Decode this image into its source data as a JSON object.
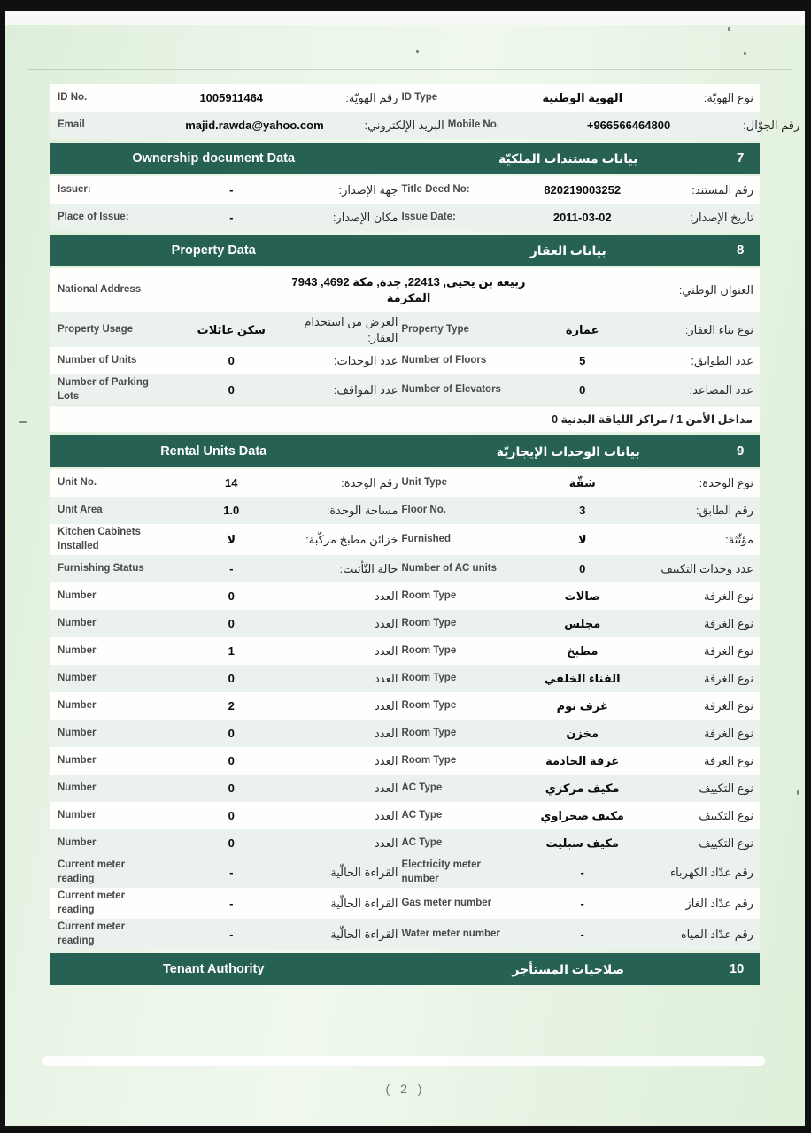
{
  "colors": {
    "header_green": "#266154",
    "row_light": "#ebf1ed",
    "paper_green": "#dcefd9"
  },
  "page": {
    "number_label": "( 2 )"
  },
  "table": {
    "rows": [
      {
        "type": "pair",
        "shade": "white",
        "en_l": "ID No.",
        "val_l": "1005911464",
        "ar_l": "رقم الهويّة:",
        "en_r": "ID Type",
        "val_r": "الهوية الوطنية",
        "ar_r": "نوع الهويّة:"
      },
      {
        "type": "pair",
        "shade": "light",
        "en_l": "Email",
        "val_l": "majid.rawda@yahoo.com",
        "ar_l": "البريد الإلكتروني:",
        "en_r": "Mobile No.",
        "val_r": "+966566464800",
        "ar_r": "رقم الجوّال:"
      },
      {
        "type": "section",
        "num": "7",
        "ar": "بيانات مستندات الملكيّة",
        "en": "Ownership document Data"
      },
      {
        "type": "pair",
        "shade": "white",
        "en_l": "Issuer:",
        "val_l": "-",
        "ar_l": "جهة الإصدار:",
        "en_r": "Title Deed No:",
        "val_r": "820219003252",
        "ar_r": "رقم المستند:"
      },
      {
        "type": "pair",
        "shade": "light",
        "en_l": "Place of Issue:",
        "val_l": "-",
        "ar_l": "مكان الإصدار:",
        "en_r": "Issue Date:",
        "val_r": "2011-03-02",
        "ar_r": "تاريخ الإصدار:"
      },
      {
        "type": "section",
        "num": "8",
        "ar": "بيانات العقار",
        "en": "Property Data"
      },
      {
        "type": "address",
        "shade": "white",
        "en_l": "National Address",
        "val_l1": "ربيعه بن يحيى, 22413, جدة, مكة 4692, 7943",
        "val_l2": "المكرمة",
        "ar_r": "العنوان الوطني:"
      },
      {
        "type": "pair",
        "shade": "light",
        "en_l": "Property Usage",
        "val_l": "سكن عائلات",
        "ar_l": "الغرض من استخدام العقار:",
        "en_r": "Property Type",
        "val_r": "عمارة",
        "ar_r": "نوع بناء العقار:"
      },
      {
        "type": "pair",
        "shade": "white",
        "en_l": "Number of Units",
        "val_l": "0",
        "ar_l": "عدد الوحدات:",
        "en_r": "Number of Floors",
        "val_r": "5",
        "ar_r": "عدد الطوابق:"
      },
      {
        "type": "pair",
        "shade": "light",
        "en_l": "Number of Parking Lots",
        "val_l": "0",
        "ar_l": "عدد المواقف:",
        "en_r": "Number of Elevators",
        "val_r": "0",
        "ar_r": "عدد المصاعد:"
      },
      {
        "type": "note",
        "shade": "white",
        "text": "مداخل الأمن 1 / مراكز اللياقة البدنية 0"
      },
      {
        "type": "section",
        "num": "9",
        "ar": "بيانات الوحدات الإيجاريّة",
        "en": "Rental Units Data"
      },
      {
        "type": "pair",
        "shade": "white",
        "en_l": "Unit No.",
        "val_l": "14",
        "ar_l": "رقم الوحدة:",
        "en_r": "Unit Type",
        "val_r": "شقّة",
        "ar_r": "نوع الوحدة:"
      },
      {
        "type": "pair",
        "shade": "light",
        "en_l": "Unit Area",
        "val_l": "1.0",
        "ar_l": "مساحة الوحدة:",
        "en_r": "Floor No.",
        "val_r": "3",
        "ar_r": "رقم الطابق:"
      },
      {
        "type": "pair",
        "shade": "white",
        "en_l": "Kitchen Cabinets Installed",
        "val_l": "لا",
        "ar_l": "خزائن مطبخ مركّبة:",
        "en_r": "Furnished",
        "val_r": "لا",
        "ar_r": "مؤثّثة:"
      },
      {
        "type": "pair",
        "shade": "light",
        "en_l": "Furnishing Status",
        "val_l": "-",
        "ar_l": "حالة التّأثيث:",
        "en_r": "Number of AC units",
        "val_r": "0",
        "ar_r": "عدد وحدات التكييف"
      },
      {
        "type": "pair",
        "shade": "white",
        "en_l": "Number",
        "val_l": "0",
        "ar_l": "العدد",
        "en_r": "Room Type",
        "val_r": "صالات",
        "ar_r": "نوع الغرفة"
      },
      {
        "type": "pair",
        "shade": "light",
        "en_l": "Number",
        "val_l": "0",
        "ar_l": "العدد",
        "en_r": "Room Type",
        "val_r": "مجلس",
        "ar_r": "نوع الغرفة"
      },
      {
        "type": "pair",
        "shade": "white",
        "en_l": "Number",
        "val_l": "1",
        "ar_l": "العدد",
        "en_r": "Room Type",
        "val_r": "مطبخ",
        "ar_r": "نوع الغرفة"
      },
      {
        "type": "pair",
        "shade": "light",
        "en_l": "Number",
        "val_l": "0",
        "ar_l": "العدد",
        "en_r": "Room Type",
        "val_r": "الفناء الخلفي",
        "ar_r": "نوع الغرفة"
      },
      {
        "type": "pair",
        "shade": "white",
        "en_l": "Number",
        "val_l": "2",
        "ar_l": "العدد",
        "en_r": "Room Type",
        "val_r": "غرف نوم",
        "ar_r": "نوع الغرفة"
      },
      {
        "type": "pair",
        "shade": "light",
        "en_l": "Number",
        "val_l": "0",
        "ar_l": "العدد",
        "en_r": "Room Type",
        "val_r": "مخزن",
        "ar_r": "نوع الغرفة"
      },
      {
        "type": "pair",
        "shade": "white",
        "en_l": "Number",
        "val_l": "0",
        "ar_l": "العدد",
        "en_r": "Room Type",
        "val_r": "غرفة الخادمة",
        "ar_r": "نوع الغرفة"
      },
      {
        "type": "pair",
        "shade": "light",
        "en_l": "Number",
        "val_l": "0",
        "ar_l": "العدد",
        "en_r": "AC Type",
        "val_r": "مكيف مركزي",
        "ar_r": "نوع التكييف"
      },
      {
        "type": "pair",
        "shade": "white",
        "en_l": "Number",
        "val_l": "0",
        "ar_l": "العدد",
        "en_r": "AC Type",
        "val_r": "مكيف صحراوي",
        "ar_r": "نوع التكييف"
      },
      {
        "type": "pair",
        "shade": "light",
        "en_l": "Number",
        "val_l": "0",
        "ar_l": "العدد",
        "en_r": "AC Type",
        "val_r": "مكيف سبليت",
        "ar_r": "نوع التكييف"
      },
      {
        "type": "pair",
        "shade": "light",
        "en_l": "Current meter reading",
        "val_l": "-",
        "ar_l": "القراءة الحالّية",
        "en_r": "Electricity meter number",
        "val_r": "-",
        "ar_r": "رقم عدّاد الكهرباء"
      },
      {
        "type": "pair",
        "shade": "white",
        "en_l": "Current meter reading",
        "val_l": "-",
        "ar_l": "القراءة الحالّية",
        "en_r": "Gas meter number",
        "val_r": "-",
        "ar_r": "رقم عدّاد الغاز"
      },
      {
        "type": "pair",
        "shade": "light",
        "en_l": "Current meter reading",
        "val_l": "-",
        "ar_l": "القراءة الحالّية",
        "en_r": "Water meter number",
        "val_r": "-",
        "ar_r": "رقم عدّاد المياه"
      },
      {
        "type": "section",
        "num": "10",
        "ar": "صلاحيات المستأجر",
        "en": "Tenant Authority"
      }
    ]
  }
}
